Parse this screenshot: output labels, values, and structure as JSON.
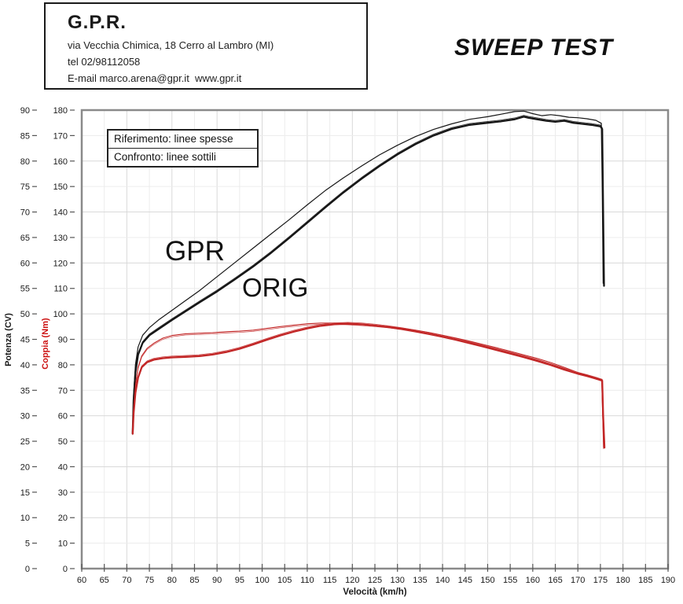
{
  "header": {
    "company": "G.P.R.",
    "address": "via Vecchia Chimica, 18 Cerro al Lambro (MI)",
    "phone": "tel 02/98112058",
    "email_line": "E-mail marco.arena@gpr.it  www.gpr.it"
  },
  "title": "SWEEP TEST",
  "legend": {
    "reference": "Riferimento: linee spesse",
    "comparison": "Confronto: linee sottili"
  },
  "annotations": {
    "gpr": "GPR",
    "orig": "ORIG"
  },
  "chart_data": {
    "type": "line",
    "x_axis": {
      "title": "Velocità (km/h)",
      "min": 60,
      "max": 190,
      "ticks": [
        60,
        65,
        70,
        75,
        80,
        85,
        90,
        95,
        100,
        105,
        110,
        115,
        120,
        125,
        130,
        135,
        140,
        145,
        150,
        155,
        160,
        165,
        170,
        175,
        180,
        185,
        190
      ]
    },
    "y_power": {
      "title": "Potenza (CV)",
      "min": 0,
      "max": 90,
      "ticks": [
        0,
        5,
        10,
        15,
        20,
        25,
        30,
        35,
        40,
        45,
        50,
        55,
        60,
        65,
        70,
        75,
        80,
        85,
        90
      ]
    },
    "y_torque": {
      "title": "Coppia (Nm)",
      "min": 0,
      "max": 180,
      "ticks": [
        0,
        10,
        20,
        30,
        40,
        50,
        60,
        70,
        80,
        90,
        100,
        110,
        120,
        130,
        140,
        150,
        160,
        170,
        180
      ]
    },
    "grid": true,
    "colors": {
      "power": "#161616",
      "torque": "#c22626",
      "torque_label": "#cc1111",
      "frame": "#8a8a8a",
      "grid_minor": "#ececec",
      "grid_major": "#d9d9d9",
      "tick": "#555555",
      "text": "#1a1a1a"
    },
    "series": [
      {
        "id": "power_gpr",
        "name": "GPR - Potenza (linea sottile)",
        "axis": "power",
        "style": "thin",
        "points": [
          [
            71.3,
            26.5
          ],
          [
            71.5,
            34
          ],
          [
            71.9,
            40
          ],
          [
            72.5,
            43.5
          ],
          [
            73.5,
            45.8
          ],
          [
            75,
            47.3
          ],
          [
            77,
            48.8
          ],
          [
            80,
            50.7
          ],
          [
            83,
            52.6
          ],
          [
            86,
            54.5
          ],
          [
            90,
            57.3
          ],
          [
            94,
            60.1
          ],
          [
            98,
            62.9
          ],
          [
            102,
            65.7
          ],
          [
            106,
            68.5
          ],
          [
            110,
            71.4
          ],
          [
            114,
            74.2
          ],
          [
            118,
            76.7
          ],
          [
            122,
            79
          ],
          [
            126,
            81.2
          ],
          [
            130,
            83.1
          ],
          [
            134,
            84.8
          ],
          [
            138,
            86.2
          ],
          [
            142,
            87.3
          ],
          [
            146,
            88.2
          ],
          [
            150,
            88.7
          ],
          [
            153,
            89.2
          ],
          [
            156,
            89.7
          ],
          [
            158,
            89.8
          ],
          [
            160,
            89.3
          ],
          [
            162,
            88.9
          ],
          [
            164,
            89.1
          ],
          [
            166,
            88.9
          ],
          [
            168,
            88.6
          ],
          [
            170,
            88.5
          ],
          [
            172,
            88.3
          ],
          [
            174,
            88
          ],
          [
            175.2,
            87.4
          ],
          [
            175.4,
            75
          ],
          [
            175.6,
            56
          ]
        ]
      },
      {
        "id": "power_orig",
        "name": "ORIG - Potenza (linea spessa)",
        "axis": "power",
        "style": "thick",
        "points": [
          [
            71.3,
            26.5
          ],
          [
            71.5,
            33
          ],
          [
            71.9,
            38.5
          ],
          [
            72.5,
            42
          ],
          [
            73.5,
            44.3
          ],
          [
            75,
            45.8
          ],
          [
            77,
            47
          ],
          [
            80,
            48.8
          ],
          [
            83,
            50.5
          ],
          [
            86,
            52.2
          ],
          [
            90,
            54.4
          ],
          [
            94,
            56.8
          ],
          [
            98,
            59.3
          ],
          [
            102,
            62
          ],
          [
            106,
            64.9
          ],
          [
            110,
            67.9
          ],
          [
            114,
            70.9
          ],
          [
            118,
            73.8
          ],
          [
            122,
            76.5
          ],
          [
            126,
            79
          ],
          [
            130,
            81.3
          ],
          [
            134,
            83.3
          ],
          [
            138,
            85
          ],
          [
            142,
            86.3
          ],
          [
            146,
            87.1
          ],
          [
            150,
            87.5
          ],
          [
            153,
            87.8
          ],
          [
            156,
            88.2
          ],
          [
            158,
            88.7
          ],
          [
            159,
            88.5
          ],
          [
            161,
            88.2
          ],
          [
            163,
            87.9
          ],
          [
            165,
            87.7
          ],
          [
            167,
            87.9
          ],
          [
            169,
            87.5
          ],
          [
            171,
            87.3
          ],
          [
            173,
            87.1
          ],
          [
            175,
            86.8
          ],
          [
            175.4,
            86.3
          ],
          [
            175.6,
            70
          ],
          [
            175.8,
            55.5
          ]
        ]
      },
      {
        "id": "torque_gpr",
        "name": "GPR - Coppia (linea sottile)",
        "axis": "torque",
        "style": "thin",
        "points": [
          [
            71.3,
            53
          ],
          [
            71.5,
            63
          ],
          [
            71.9,
            72
          ],
          [
            72.5,
            79
          ],
          [
            73.3,
            83.5
          ],
          [
            74.5,
            86.5
          ],
          [
            76,
            88.5
          ],
          [
            78,
            90.5
          ],
          [
            80,
            91.5
          ],
          [
            83,
            92.2
          ],
          [
            86,
            92.4
          ],
          [
            89,
            92.6
          ],
          [
            92,
            93
          ],
          [
            95,
            93.2
          ],
          [
            98,
            93.6
          ],
          [
            101,
            94.3
          ],
          [
            104,
            95
          ],
          [
            107,
            95.6
          ],
          [
            110,
            96.1
          ],
          [
            113,
            96.4
          ],
          [
            116,
            96.4
          ],
          [
            119,
            96.2
          ],
          [
            122,
            95.9
          ],
          [
            125,
            95.5
          ],
          [
            128,
            95
          ],
          [
            131,
            94.4
          ],
          [
            134,
            93.6
          ],
          [
            137,
            92.7
          ],
          [
            140,
            91.6
          ],
          [
            143,
            90.5
          ],
          [
            146,
            89.3
          ],
          [
            149,
            88
          ],
          [
            152,
            86.7
          ],
          [
            155,
            85.3
          ],
          [
            158,
            83.9
          ],
          [
            161,
            82.5
          ],
          [
            164,
            80.9
          ],
          [
            167,
            79
          ],
          [
            170,
            77
          ],
          [
            172,
            76
          ],
          [
            174,
            74.8
          ],
          [
            175.3,
            74.2
          ],
          [
            175.5,
            60
          ],
          [
            175.7,
            47.5
          ]
        ]
      },
      {
        "id": "torque_orig",
        "name": "ORIG - Coppia (linea spessa)",
        "axis": "torque",
        "style": "thick",
        "points": [
          [
            71.3,
            53
          ],
          [
            71.5,
            61
          ],
          [
            71.9,
            69
          ],
          [
            72.5,
            75
          ],
          [
            73.3,
            79
          ],
          [
            74.5,
            81
          ],
          [
            76,
            82
          ],
          [
            78,
            82.6
          ],
          [
            80,
            82.9
          ],
          [
            83,
            83.1
          ],
          [
            86,
            83.4
          ],
          [
            89,
            84
          ],
          [
            92,
            85
          ],
          [
            95,
            86.3
          ],
          [
            98,
            88
          ],
          [
            101,
            89.8
          ],
          [
            104,
            91.5
          ],
          [
            107,
            93
          ],
          [
            110,
            94.3
          ],
          [
            113,
            95.3
          ],
          [
            116,
            95.9
          ],
          [
            119,
            96.1
          ],
          [
            122,
            95.9
          ],
          [
            125,
            95.4
          ],
          [
            128,
            94.8
          ],
          [
            131,
            94
          ],
          [
            134,
            93.1
          ],
          [
            137,
            92.1
          ],
          [
            140,
            91
          ],
          [
            143,
            89.8
          ],
          [
            146,
            88.5
          ],
          [
            149,
            87.2
          ],
          [
            152,
            85.8
          ],
          [
            155,
            84.4
          ],
          [
            158,
            83
          ],
          [
            161,
            81.5
          ],
          [
            164,
            79.9
          ],
          [
            167,
            78.1
          ],
          [
            170,
            76.5
          ],
          [
            172,
            75.6
          ],
          [
            174,
            74.6
          ],
          [
            175.4,
            73.8
          ],
          [
            175.6,
            60
          ],
          [
            175.9,
            47.5
          ]
        ]
      }
    ]
  }
}
